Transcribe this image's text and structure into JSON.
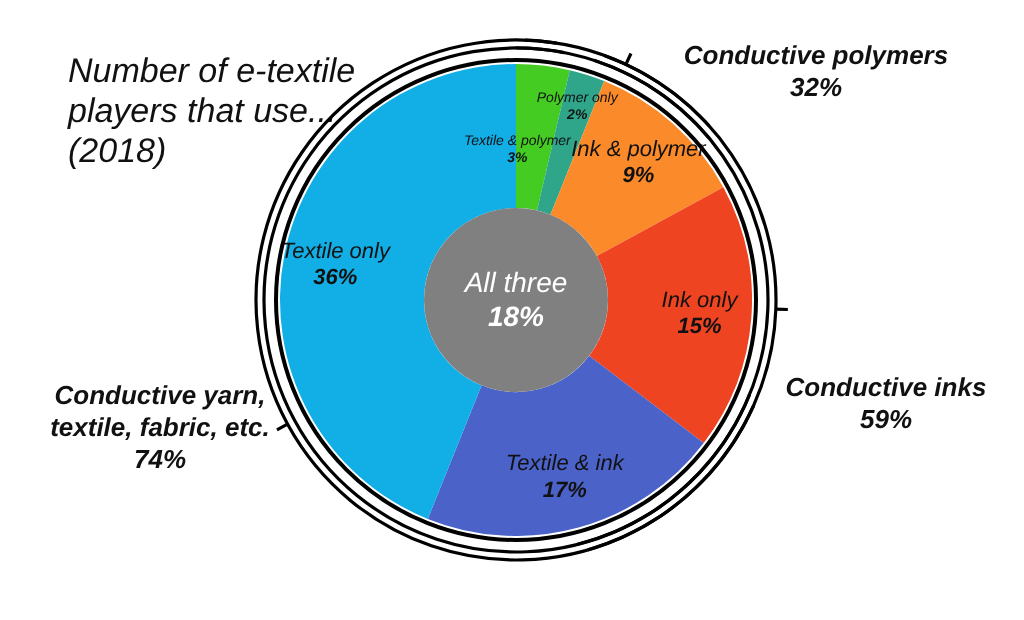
{
  "chart_data": {
    "type": "donut",
    "title": "Number of e-textile\nplayers that use...\n(2018)",
    "categories": [
      "Textile & polymer",
      "Polymer only",
      "Ink & polymer",
      "Ink only",
      "Textile & ink",
      "Textile only"
    ],
    "values": [
      3,
      2,
      9,
      15,
      17,
      36
    ],
    "value_labels": [
      "3%",
      "2%",
      "9%",
      "15%",
      "17%",
      "36%"
    ],
    "colors": [
      "#44cc22",
      "#2fa58a",
      "#fb8a2a",
      "#ee4422",
      "#4b63c8",
      "#12aee6"
    ],
    "annotations": [
      "All three\n18%",
      "Conductive polymers\n32%",
      "Conductive inks\n59%",
      "Conductive yarn,\ntextile, fabric, etc.\n74%"
    ]
  }
}
